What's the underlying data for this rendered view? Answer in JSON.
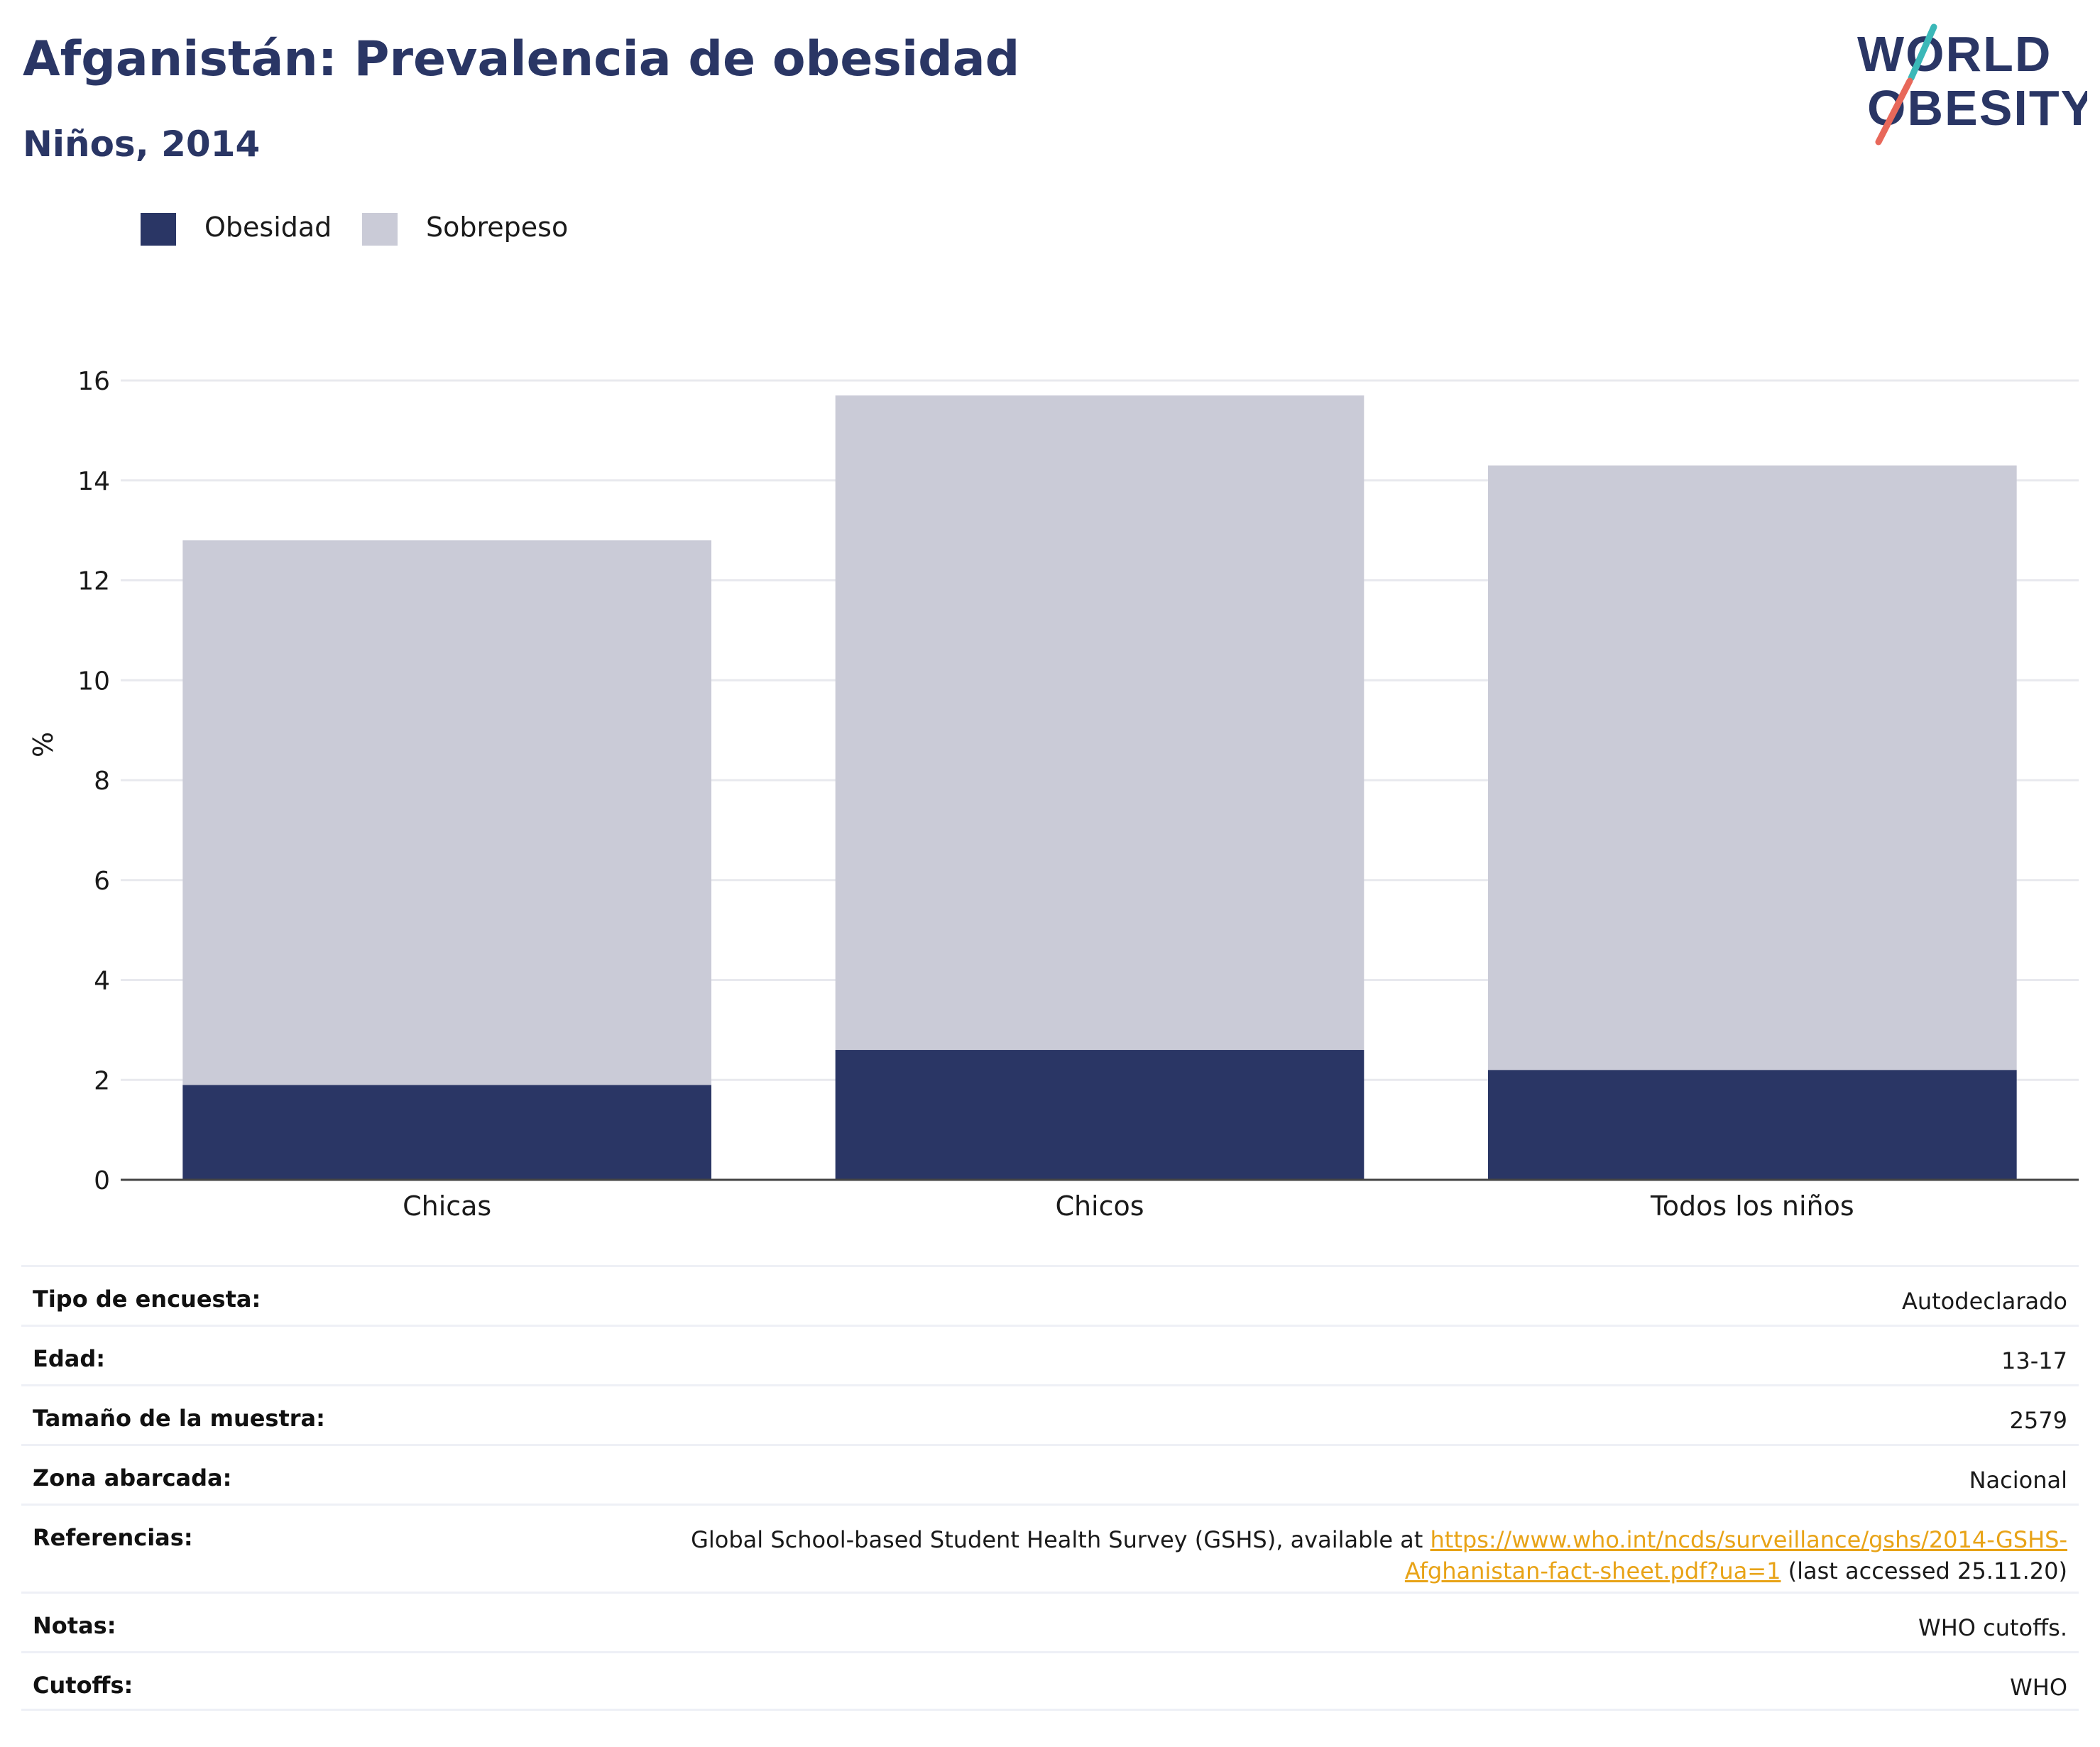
{
  "header": {
    "title": "Afganistán: Prevalencia de obesidad",
    "subtitle": "Niños, 2014",
    "logo_line1": "WORLD",
    "logo_line2": "OBESITY"
  },
  "legend": {
    "items": [
      {
        "label": "Obesidad",
        "color": "#2a3665"
      },
      {
        "label": "Sobrepeso",
        "color": "#cacbd7"
      }
    ]
  },
  "chart_data": {
    "type": "bar",
    "stacked": true,
    "categories": [
      "Chicas",
      "Chicos",
      "Todos los niños"
    ],
    "series": [
      {
        "name": "Obesidad",
        "values": [
          1.9,
          2.6,
          2.2
        ],
        "color": "#2a3665"
      },
      {
        "name": "Sobrepeso",
        "values": [
          10.9,
          13.1,
          12.1
        ],
        "color": "#cacbd7"
      }
    ],
    "totals": [
      12.8,
      15.7,
      14.3
    ],
    "title": "Afganistán: Prevalencia de obesidad",
    "subtitle": "Niños, 2014",
    "xlabel": "",
    "ylabel": "%",
    "ylim": [
      0,
      16
    ],
    "yticks": [
      0,
      2,
      4,
      6,
      8,
      10,
      12,
      14,
      16
    ],
    "grid": true,
    "legend_position": "top-left"
  },
  "info": {
    "rows": [
      {
        "key": "Tipo de encuesta:",
        "value": "Autodeclarado"
      },
      {
        "key": "Edad:",
        "value": "13-17"
      },
      {
        "key": "Tamaño de la muestra:",
        "value": "2579"
      },
      {
        "key": "Zona abarcada:",
        "value": "Nacional"
      }
    ],
    "references": {
      "key": "Referencias:",
      "text_before": "Global School-based Student Health Survey (GSHS), available at ",
      "link_text": "https://www.who.int/ncds/surveillance/gshs/2014-GSHS-Afghanistan-fact-sheet.pdf?ua=1",
      "text_after": " (last accessed 25.11.20)"
    },
    "notes": {
      "key": "Notas:",
      "value": "WHO cutoffs."
    },
    "cutoffs": {
      "key": "Cutoffs:",
      "value": "WHO"
    }
  },
  "colors": {
    "accent_navy": "#2a3665",
    "overweight_gray": "#cacbd7",
    "link_orange": "#e8a317",
    "logo_teal": "#3bb8b8",
    "logo_coral": "#e8685a"
  }
}
